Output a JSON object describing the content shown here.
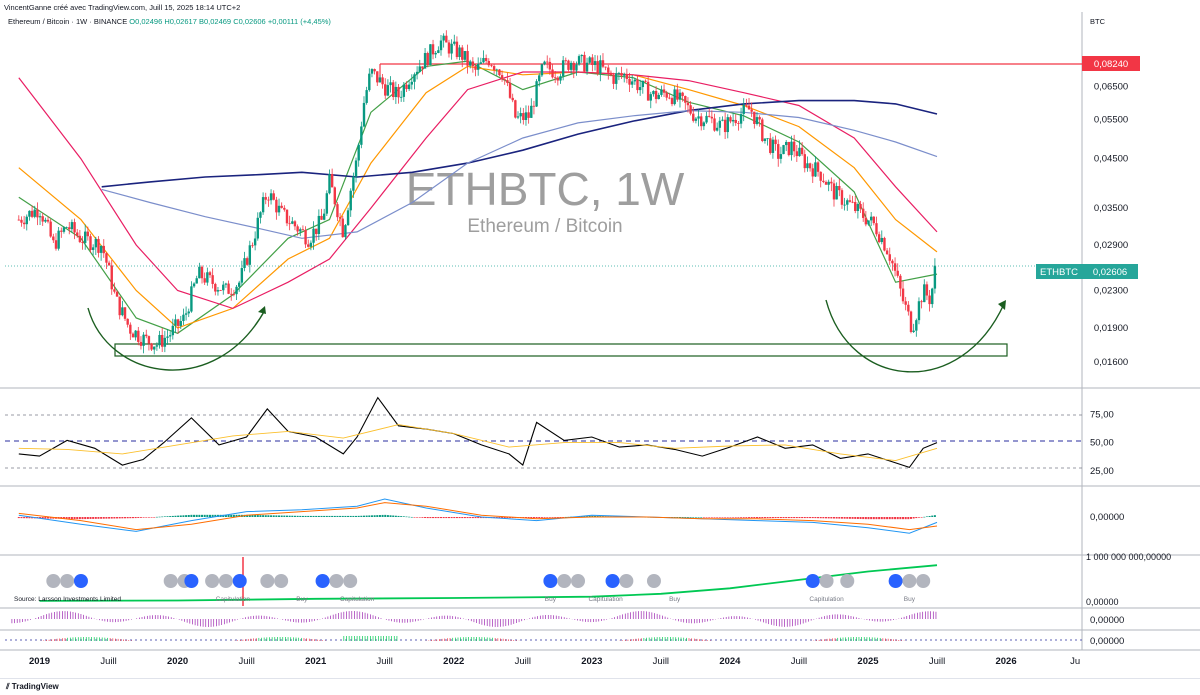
{
  "header": {
    "attribution": "VincentGanne créé avec TradingView.com, Juill 15, 2025 18:14 UTC+2",
    "pair": "Ethereum / Bitcoin · 1W · BINANCE",
    "open": "O0,02496",
    "high": "H0,02617",
    "low": "B0,02469",
    "close": "C0,02606",
    "change": "+0,00111 (+4,45%)",
    "currency": "BTC"
  },
  "watermark": {
    "symbol": "ETHBTC, 1W",
    "name": "Ethereum / Bitcoin"
  },
  "colors": {
    "up": "#089981",
    "down": "#f23645",
    "resistance": "#f23645",
    "ema_fast": "#43a047",
    "ema_mid": "#ff9800",
    "ema_slow": "#e91e63",
    "ma_long": "#1a237e",
    "ma_long2": "#7b8ecb",
    "rsi": "#000000",
    "rsi_ma": "#fbc02d",
    "macd": "#2196f3",
    "signal": "#ff6d00",
    "badge_last": "#26a69a",
    "badge_res": "#f23645"
  },
  "chart_data": [
    {
      "type": "line",
      "title": "ETHBTC, 1W",
      "subtitle": "Ethereum / Bitcoin",
      "ylim": [
        0.014,
        0.095
      ],
      "scale": "log",
      "x_ticks": [
        "2019",
        "Juill",
        "2020",
        "Juill",
        "2021",
        "Juill",
        "2022",
        "Juill",
        "2023",
        "Juill",
        "2024",
        "Juill",
        "2025",
        "Juill",
        "2026",
        "Ju"
      ],
      "y_ticks": [
        "0,06500",
        "0,05500",
        "0,04500",
        "0,03500",
        "0,02900",
        "0,02300",
        "0,01900",
        "0,01600"
      ],
      "last_price": "0,02606",
      "last_label": "ETHBTC",
      "resistance": "0,08240",
      "series": [
        {
          "key": "price",
          "t": [
            2018.85,
            2019.0,
            2019.1,
            2019.2,
            2019.3,
            2019.45,
            2019.55,
            2019.65,
            2019.75,
            2019.85,
            2019.95,
            2020.05,
            2020.15,
            2020.25,
            2020.35,
            2020.45,
            2020.55,
            2020.65,
            2020.75,
            2020.85,
            2020.95,
            2021.05,
            2021.1,
            2021.2,
            2021.3,
            2021.35,
            2021.4,
            2021.5,
            2021.6,
            2021.7,
            2021.8,
            2021.9,
            2021.95,
            2022.05,
            2022.15,
            2022.25,
            2022.35,
            2022.45,
            2022.55,
            2022.65,
            2022.75,
            2022.85,
            2022.95,
            2023.05,
            2023.15,
            2023.25,
            2023.35,
            2023.45,
            2023.55,
            2023.65,
            2023.75,
            2023.85,
            2023.95,
            2024.05,
            2024.15,
            2024.25,
            2024.35,
            2024.45,
            2024.55,
            2024.65,
            2024.75,
            2024.85,
            2024.95,
            2025.05,
            2025.15,
            2025.25,
            2025.32,
            2025.4,
            2025.45,
            2025.5
          ],
          "v": [
            0.033,
            0.035,
            0.029,
            0.032,
            0.03,
            0.029,
            0.022,
            0.019,
            0.018,
            0.0175,
            0.0185,
            0.02,
            0.025,
            0.024,
            0.023,
            0.024,
            0.03,
            0.038,
            0.034,
            0.032,
            0.03,
            0.033,
            0.04,
            0.031,
            0.045,
            0.06,
            0.07,
            0.065,
            0.062,
            0.07,
            0.075,
            0.082,
            0.08,
            0.077,
            0.07,
            0.075,
            0.07,
            0.055,
            0.056,
            0.072,
            0.07,
            0.074,
            0.073,
            0.072,
            0.068,
            0.069,
            0.065,
            0.062,
            0.063,
            0.06,
            0.056,
            0.055,
            0.053,
            0.056,
            0.058,
            0.05,
            0.046,
            0.048,
            0.044,
            0.042,
            0.038,
            0.036,
            0.034,
            0.032,
            0.028,
            0.022,
            0.019,
            0.023,
            0.022,
            0.0261
          ]
        },
        {
          "key": "ema_fast",
          "t": [
            2018.85,
            2019.3,
            2019.7,
            2020.0,
            2020.4,
            2020.8,
            2021.1,
            2021.4,
            2021.8,
            2022.1,
            2022.5,
            2022.9,
            2023.3,
            2023.7,
            2024.1,
            2024.5,
            2024.9,
            2025.2,
            2025.5
          ],
          "v": [
            0.037,
            0.03,
            0.02,
            0.0185,
            0.0225,
            0.03,
            0.033,
            0.057,
            0.072,
            0.074,
            0.064,
            0.07,
            0.068,
            0.06,
            0.056,
            0.049,
            0.038,
            0.024,
            0.025
          ]
        },
        {
          "key": "ema_mid",
          "t": [
            2018.85,
            2019.3,
            2019.7,
            2020.0,
            2020.4,
            2020.8,
            2021.1,
            2021.4,
            2021.8,
            2022.1,
            2022.5,
            2022.9,
            2023.3,
            2023.7,
            2024.1,
            2024.5,
            2024.9,
            2025.2,
            2025.5
          ],
          "v": [
            0.043,
            0.033,
            0.023,
            0.019,
            0.021,
            0.027,
            0.03,
            0.044,
            0.063,
            0.072,
            0.069,
            0.07,
            0.069,
            0.064,
            0.059,
            0.053,
            0.043,
            0.033,
            0.028
          ]
        },
        {
          "key": "ema_slow",
          "t": [
            2018.85,
            2019.3,
            2019.7,
            2020.0,
            2020.4,
            2020.8,
            2021.1,
            2021.4,
            2021.8,
            2022.1,
            2022.5,
            2022.9,
            2023.3,
            2023.7,
            2024.1,
            2024.5,
            2024.9,
            2025.2,
            2025.5
          ],
          "v": [
            0.068,
            0.045,
            0.029,
            0.023,
            0.021,
            0.024,
            0.027,
            0.035,
            0.05,
            0.064,
            0.07,
            0.07,
            0.069,
            0.067,
            0.063,
            0.059,
            0.05,
            0.039,
            0.031
          ]
        },
        {
          "key": "ma_long",
          "t": [
            2019.45,
            2019.8,
            2020.2,
            2020.6,
            2020.9,
            2021.3,
            2021.7,
            2022.1,
            2022.5,
            2022.9,
            2023.3,
            2023.7,
            2024.1,
            2024.5,
            2024.9,
            2025.2,
            2025.5
          ],
          "v": [
            0.039,
            0.04,
            0.041,
            0.0415,
            0.042,
            0.041,
            0.042,
            0.044,
            0.047,
            0.051,
            0.0545,
            0.0575,
            0.0595,
            0.0605,
            0.0605,
            0.0595,
            0.0565
          ]
        },
        {
          "key": "ma_long2",
          "t": [
            2019.45,
            2019.8,
            2020.2,
            2020.6,
            2020.9,
            2021.3,
            2021.7,
            2022.1,
            2022.5,
            2022.9,
            2023.3,
            2023.7,
            2024.1,
            2024.5,
            2024.9,
            2025.2,
            2025.5
          ],
          "v": [
            0.0385,
            0.036,
            0.0335,
            0.0315,
            0.03,
            0.031,
            0.036,
            0.044,
            0.05,
            0.054,
            0.056,
            0.0575,
            0.057,
            0.0555,
            0.052,
            0.049,
            0.0455
          ]
        }
      ]
    },
    {
      "type": "line",
      "title": "",
      "y_ticks": [
        "75,00",
        "50,00",
        "25,00"
      ],
      "ylim": [
        15,
        95
      ],
      "series": [
        {
          "key": "rsi",
          "t": [
            2018.85,
            2019.0,
            2019.2,
            2019.4,
            2019.6,
            2019.75,
            2019.9,
            2020.1,
            2020.3,
            2020.5,
            2020.65,
            2020.8,
            2021.0,
            2021.2,
            2021.3,
            2021.45,
            2021.6,
            2021.8,
            2022.0,
            2022.2,
            2022.4,
            2022.5,
            2022.6,
            2022.8,
            2023.0,
            2023.2,
            2023.4,
            2023.6,
            2023.8,
            2024.0,
            2024.2,
            2024.4,
            2024.6,
            2024.8,
            2025.0,
            2025.15,
            2025.3,
            2025.4,
            2025.5
          ],
          "v": [
            40,
            38,
            52,
            45,
            30,
            35,
            50,
            72,
            48,
            55,
            80,
            60,
            55,
            40,
            55,
            90,
            65,
            62,
            58,
            48,
            40,
            30,
            68,
            52,
            55,
            46,
            48,
            44,
            38,
            46,
            55,
            45,
            48,
            36,
            40,
            34,
            28,
            45,
            50
          ]
        },
        {
          "key": "rsi_ma",
          "t": [
            2018.85,
            2019.2,
            2019.6,
            2020.0,
            2020.4,
            2020.8,
            2021.2,
            2021.6,
            2022.0,
            2022.4,
            2022.8,
            2023.2,
            2023.6,
            2024.0,
            2024.4,
            2024.8,
            2025.2,
            2025.5
          ],
          "v": [
            45,
            44,
            40,
            48,
            56,
            60,
            54,
            66,
            58,
            46,
            50,
            50,
            45,
            47,
            48,
            40,
            34,
            45
          ]
        }
      ]
    },
    {
      "type": "line",
      "y_ticks": [
        "0,00000"
      ],
      "series": [
        {
          "key": "macd",
          "t": [
            2018.85,
            2019.3,
            2019.7,
            2020.1,
            2020.5,
            2020.9,
            2021.3,
            2021.5,
            2021.8,
            2022.2,
            2022.6,
            2023.0,
            2023.4,
            2023.8,
            2024.2,
            2024.6,
            2025.0,
            2025.3,
            2025.5
          ],
          "v": [
            0.1,
            -0.4,
            -0.8,
            -0.2,
            0.3,
            0.4,
            0.6,
            1.0,
            0.5,
            0.0,
            -0.2,
            0.1,
            0.0,
            -0.1,
            -0.2,
            -0.3,
            -0.6,
            -0.9,
            -0.3
          ]
        },
        {
          "key": "signal",
          "t": [
            2018.85,
            2019.3,
            2019.7,
            2020.1,
            2020.5,
            2020.9,
            2021.3,
            2021.5,
            2021.8,
            2022.2,
            2022.6,
            2023.0,
            2023.4,
            2023.8,
            2024.2,
            2024.6,
            2025.0,
            2025.3,
            2025.5
          ],
          "v": [
            0.2,
            -0.2,
            -0.7,
            -0.4,
            0.1,
            0.3,
            0.5,
            0.8,
            0.6,
            0.1,
            -0.1,
            0.0,
            0.0,
            -0.1,
            -0.1,
            -0.2,
            -0.4,
            -0.7,
            -0.5
          ]
        }
      ]
    },
    {
      "type": "line",
      "y_ticks": [
        "1 000 000 000,00000",
        "0,00000"
      ],
      "source": "Source: Larsson Investments Limited",
      "labels": [
        "Capitulation",
        "Buy"
      ],
      "series": [
        {
          "key": "trend",
          "t": [
            2019.0,
            2020.0,
            2021.0,
            2022.0,
            2023.0,
            2023.5,
            2024.0,
            2024.5,
            2025.0,
            2025.5
          ],
          "v": [
            0.05,
            0.06,
            0.1,
            0.12,
            0.15,
            0.22,
            0.35,
            0.55,
            0.75,
            0.9
          ]
        }
      ]
    },
    {
      "type": "line",
      "y_ticks": [
        "0,00000"
      ]
    },
    {
      "type": "line",
      "y_ticks": [
        "0,00000"
      ]
    }
  ]
}
